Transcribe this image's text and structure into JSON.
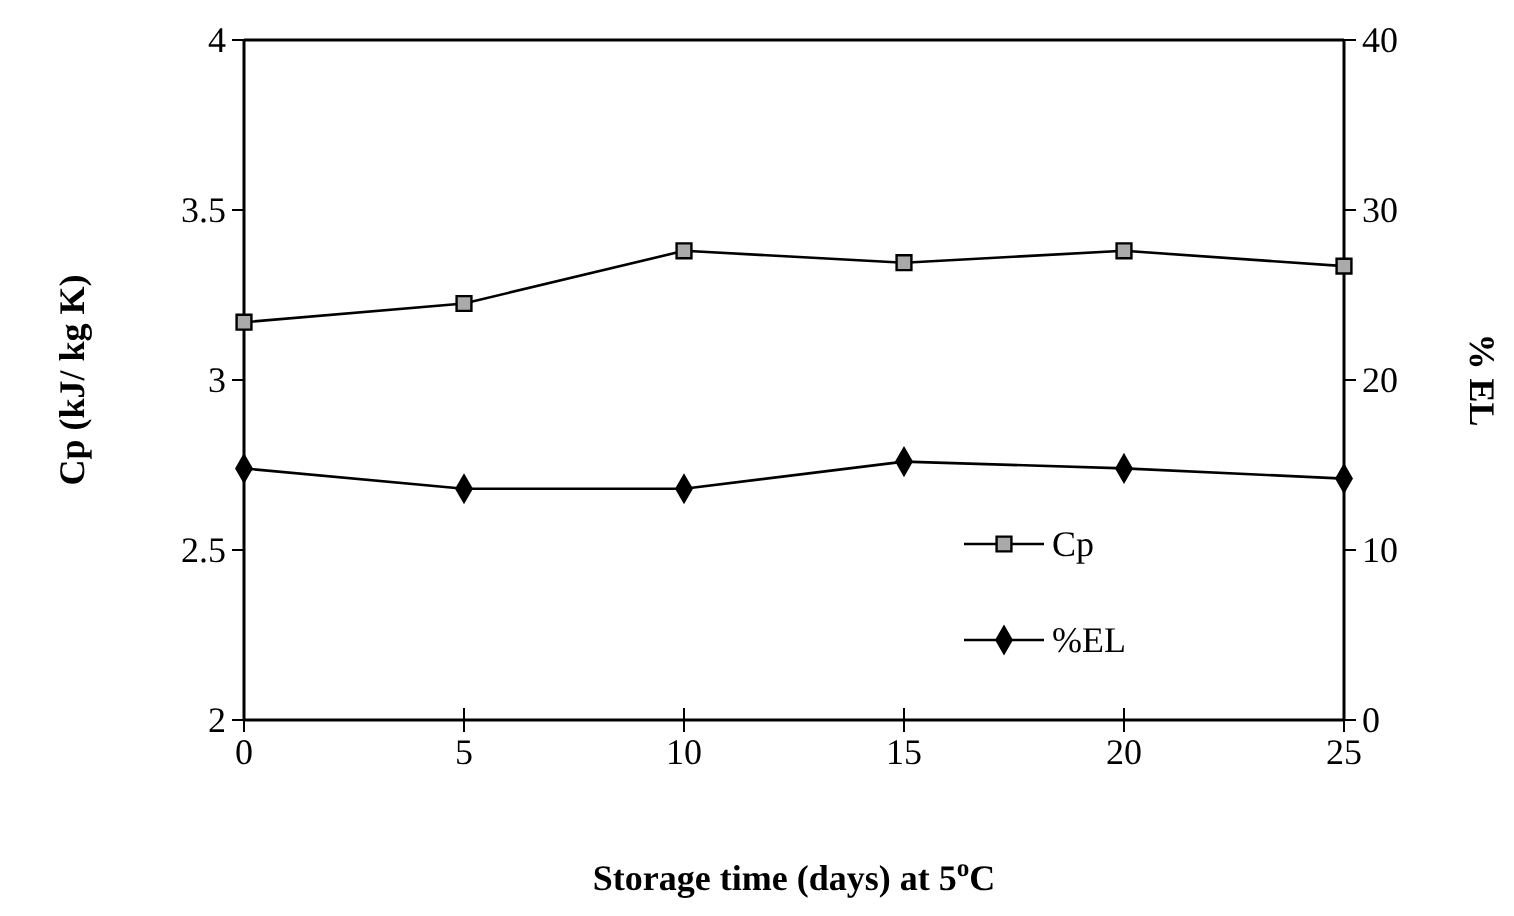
{
  "chart_data": {
    "type": "line",
    "xlabel": "Storage time (days) at 5$^{o}$C",
    "ylabel": "Cp (kJ/ kg K)",
    "y2label": "% EL",
    "x": [
      0,
      5,
      10,
      15,
      20,
      25
    ],
    "series": [
      {
        "name": "Cp",
        "color": "#000000",
        "values": [
          3.17,
          3.225,
          3.38,
          3.345,
          3.38,
          3.335
        ],
        "marker": "square"
      },
      {
        "name": "%EL",
        "color": "#000000",
        "values": [
          14.8,
          13.6,
          13.6,
          15.2,
          14.8,
          14.2
        ],
        "marker": "diamond",
        "axis": "y2"
      }
    ],
    "xlim": [
      0,
      25
    ],
    "xticks": [
      0,
      5,
      10,
      15,
      20,
      25
    ],
    "ylim": [
      2,
      4
    ],
    "yticks": [
      2,
      2.5,
      3,
      3.5,
      4
    ],
    "y2lim": [
      0,
      40
    ],
    "y2ticks": [
      0,
      10,
      20,
      30,
      40
    ],
    "legend": "right",
    "grid": false
  }
}
